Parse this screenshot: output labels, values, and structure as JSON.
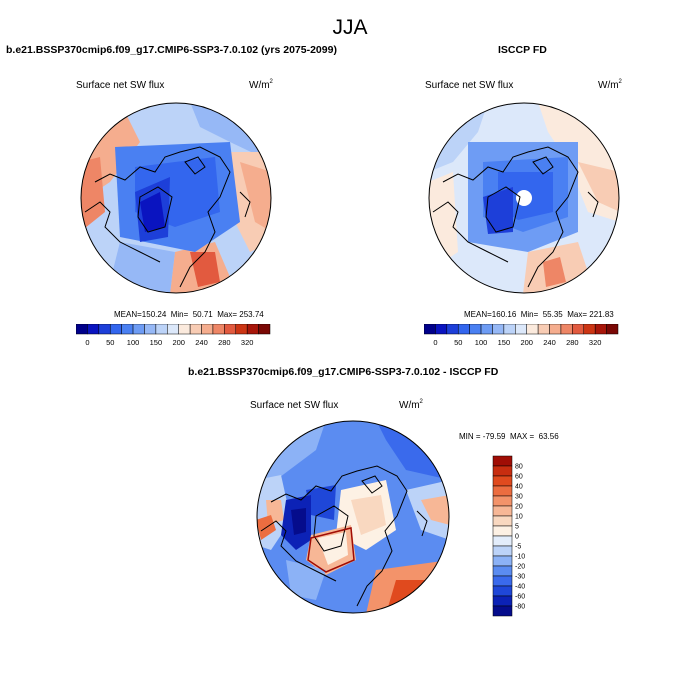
{
  "page_title": "JJA",
  "panels": [
    {
      "title": "b.e21.BSSP370cmip6.f09_g17.CMIP6-SSP3-7.0.102 (yrs 2075-2099)",
      "variable": "Surface net SW flux",
      "units_base": "W/m",
      "units_exp": "2",
      "stats": {
        "mean_label": "MEAN=",
        "mean": "150.24",
        "min_label": "Min=",
        "min": "50.71",
        "max_label": "Max=",
        "max": "253.74"
      }
    },
    {
      "title": "ISCCP FD",
      "variable": "Surface net SW flux",
      "units_base": "W/m",
      "units_exp": "2",
      "stats": {
        "mean_label": "MEAN=",
        "mean": "160.16",
        "min_label": "Min=",
        "min": "55.35",
        "max_label": "Max=",
        "max": "221.83"
      }
    },
    {
      "title": "b.e21.BSSP370cmip6.f09_g17.CMIP6-SSP3-7.0.102 - ISCCP FD",
      "variable": "Surface net SW flux",
      "units_base": "W/m",
      "units_exp": "2",
      "stats": {
        "min_label": "MIN =",
        "min": "-79.59",
        "max_label": "MAX =",
        "max": "63.56"
      }
    }
  ],
  "colorbar_abs": {
    "labels": [
      "0",
      "50",
      "100",
      "150",
      "200",
      "240",
      "280",
      "320"
    ],
    "colors": [
      "#00008a",
      "#0a14c0",
      "#1d3fd9",
      "#3366ee",
      "#4a80f2",
      "#6e9cf4",
      "#96b8f6",
      "#bcd3f8",
      "#dce8fa",
      "#fbeadd",
      "#f8ccb4",
      "#f5ad8e",
      "#ee8666",
      "#e25a3f",
      "#cc3514",
      "#a8160a",
      "#7a0805"
    ]
  },
  "colorbar_diff": {
    "labels": [
      "80",
      "60",
      "40",
      "30",
      "20",
      "10",
      "5",
      "0",
      "-5",
      "-10",
      "-20",
      "-30",
      "-40",
      "-60",
      "-80"
    ],
    "colors": [
      "#a00d05",
      "#c82d10",
      "#e04a1e",
      "#ec6d40",
      "#f3936a",
      "#f7b796",
      "#f9d8c0",
      "#fdf1e4",
      "#e3edfb",
      "#bcd3f8",
      "#8cb2f6",
      "#5b8cf1",
      "#3a6aec",
      "#1f47d8",
      "#0c22b6",
      "#050c8c"
    ]
  },
  "map_colors": {
    "background": "#bcd3f8",
    "land_outline": "#000000",
    "circle_outline": "#000000"
  }
}
